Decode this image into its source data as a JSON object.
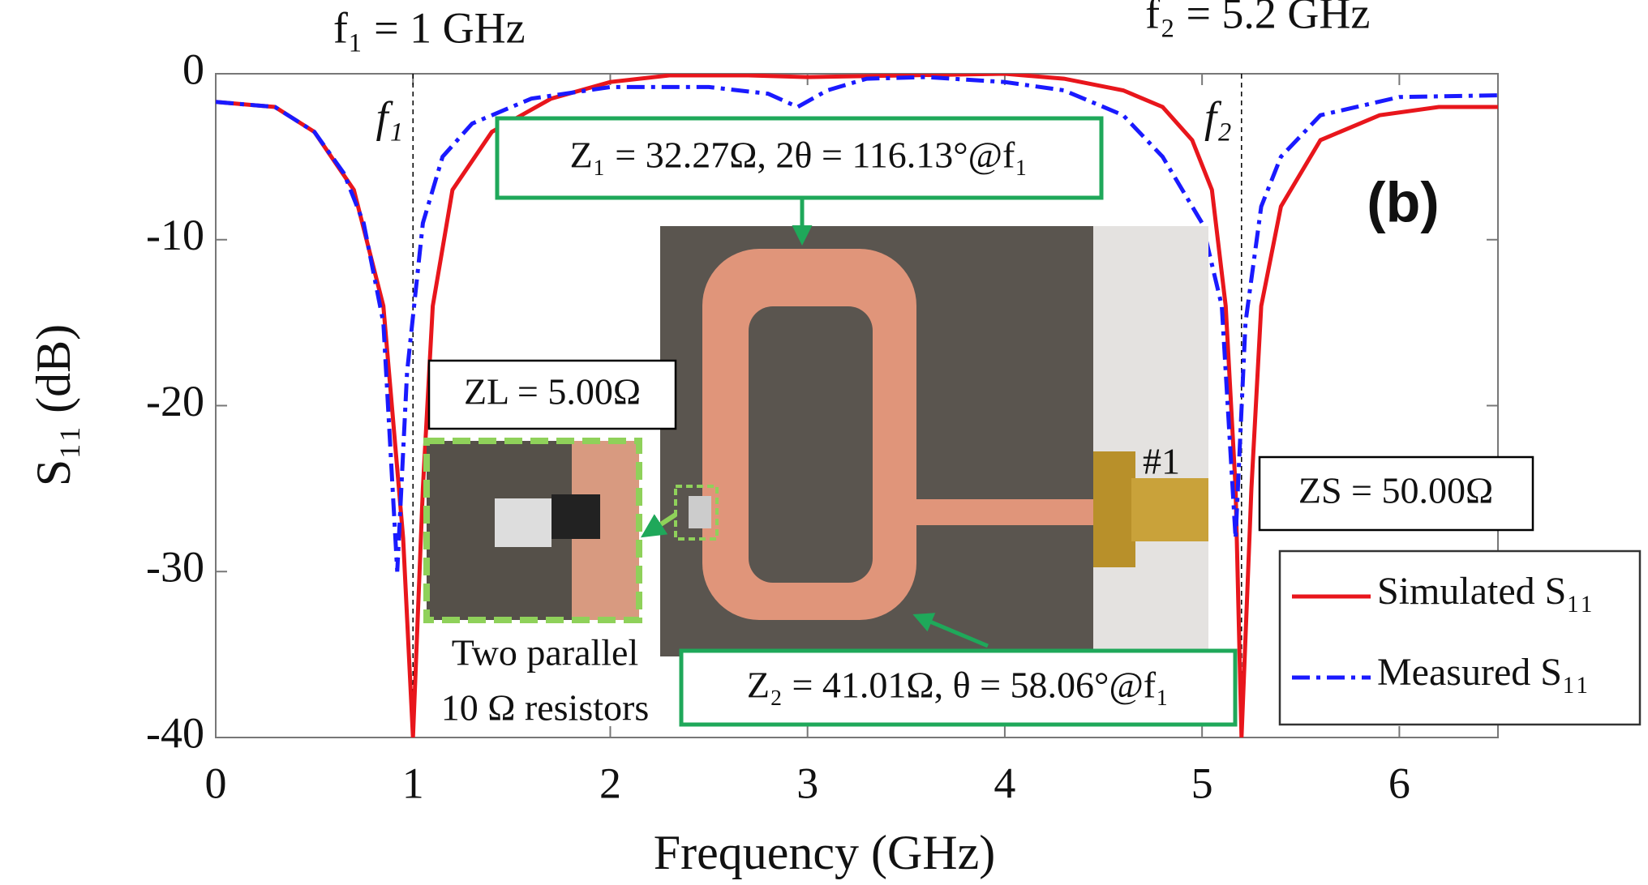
{
  "chart_data": {
    "type": "line",
    "xlabel": "Frequency (GHz)",
    "ylabel": "S₁₁ (dB)",
    "xlim": [
      0,
      6.5
    ],
    "ylim": [
      -40,
      0
    ],
    "xticks": [
      0,
      1,
      2,
      3,
      4,
      5,
      6
    ],
    "yticks": [
      0,
      -10,
      -20,
      -30,
      -40
    ],
    "grid": false,
    "legend": "lower right",
    "series": [
      {
        "name": "Simulated S₁₁",
        "color": "#e8161c",
        "style": "solid",
        "x": [
          0,
          0.3,
          0.5,
          0.7,
          0.85,
          0.95,
          1.0,
          1.05,
          1.1,
          1.2,
          1.4,
          1.7,
          2.0,
          2.3,
          2.7,
          3.0,
          3.5,
          4.0,
          4.3,
          4.6,
          4.8,
          4.95,
          5.05,
          5.12,
          5.17,
          5.2,
          5.25,
          5.3,
          5.4,
          5.6,
          5.9,
          6.2,
          6.5
        ],
        "values": [
          -1.7,
          -2,
          -3.5,
          -7,
          -14,
          -28,
          -40,
          -25,
          -14,
          -7,
          -3.5,
          -1.5,
          -0.5,
          -0.1,
          -0.1,
          -0.2,
          -0.1,
          0,
          -0.3,
          -1,
          -2,
          -4,
          -7,
          -14,
          -25,
          -40,
          -25,
          -14,
          -8,
          -4,
          -2.5,
          -2,
          -2
        ]
      },
      {
        "name": "Measured S₁₁",
        "color": "#1a1aff",
        "style": "dashdot",
        "x": [
          0,
          0.3,
          0.5,
          0.65,
          0.75,
          0.85,
          0.92,
          0.97,
          1.05,
          1.15,
          1.3,
          1.6,
          2.0,
          2.5,
          2.8,
          2.95,
          3.1,
          3.3,
          3.6,
          4.0,
          4.3,
          4.6,
          4.8,
          5.0,
          5.1,
          5.17,
          5.22,
          5.3,
          5.4,
          5.6,
          6.0,
          6.5
        ],
        "values": [
          -1.7,
          -2,
          -3.5,
          -6,
          -9,
          -15,
          -30,
          -18,
          -9,
          -5,
          -3,
          -1.5,
          -0.8,
          -0.8,
          -1.2,
          -2,
          -1,
          -0.3,
          -0.2,
          -0.5,
          -1,
          -2.5,
          -5,
          -9,
          -14,
          -28,
          -15,
          -8,
          -5,
          -2.5,
          -1.4,
          -1.3
        ]
      }
    ],
    "markers": [
      {
        "x": 1,
        "label": "f₁",
        "annotation": "f₁ = 1 GHz"
      },
      {
        "x": 5.2,
        "label": "f₂",
        "annotation": "f₂ = 5.2 GHz"
      }
    ],
    "annotations": {
      "panel": "(b)",
      "z1": "Z₁ = 32.27Ω, 2θ = 116.13°@f₁",
      "z2": "Z₂ = 41.01Ω, θ = 58.06°@f₁",
      "zl": "ZL = 5.00Ω",
      "zs": "ZS = 50.00Ω",
      "port": "#1",
      "resistor_line1": "Two parallel",
      "resistor_line2": "10 Ω resistors"
    }
  }
}
